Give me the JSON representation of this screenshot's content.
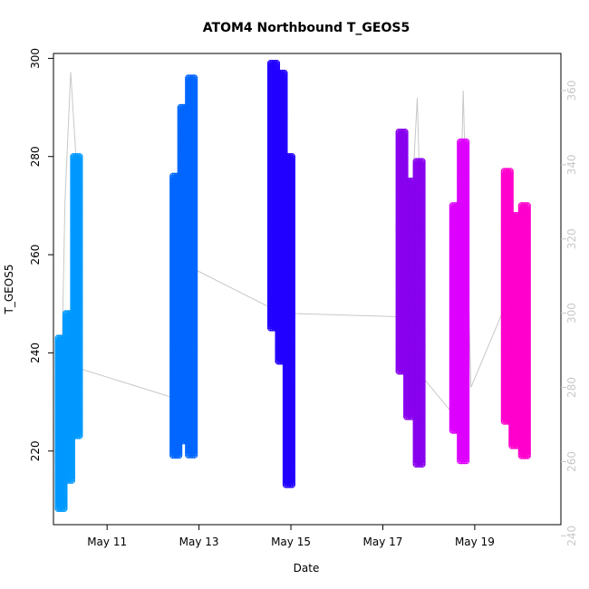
{
  "chart_data": {
    "type": "scatter",
    "title": "ATOM4 Northbound T_GEOS5",
    "xlabel": "Date",
    "ylabel": "T_GEOS5",
    "xlim": [
      "2016-05-09T20:00",
      "2016-05-20T21:00"
    ],
    "ylim": [
      205,
      301
    ],
    "ylim_right": [
      243,
      370
    ],
    "x_ticks": [
      {
        "date": "2016-05-11",
        "label": "May 11"
      },
      {
        "date": "2016-05-13",
        "label": "May 13"
      },
      {
        "date": "2016-05-15",
        "label": "May 15"
      },
      {
        "date": "2016-05-17",
        "label": "May 17"
      },
      {
        "date": "2016-05-19",
        "label": "May 19"
      }
    ],
    "y_ticks": [
      220,
      240,
      260,
      280,
      300
    ],
    "y_ticks_right": [
      240,
      260,
      280,
      300,
      320,
      340,
      360
    ],
    "grid": false,
    "marker": "open-circle",
    "series": [
      {
        "color": "#0099ff",
        "segments": [
          {
            "x": "2016-05-10T00:00",
            "ymin": 208,
            "ymax": 243
          },
          {
            "x": "2016-05-10T04:00",
            "ymin": 214,
            "ymax": 248
          },
          {
            "x": "2016-05-10T08:00",
            "ymin": 223,
            "ymax": 280
          }
        ]
      },
      {
        "color": "#0066ff",
        "segments": [
          {
            "x": "2016-05-12T12:00",
            "ymin": 219,
            "ymax": 276
          },
          {
            "x": "2016-05-12T16:00",
            "ymin": 222,
            "ymax": 290
          },
          {
            "x": "2016-05-12T20:00",
            "ymin": 219,
            "ymax": 296
          }
        ]
      },
      {
        "color": "#2200ff",
        "segments": [
          {
            "x": "2016-05-14T15:00",
            "ymin": 245,
            "ymax": 299
          },
          {
            "x": "2016-05-14T19:00",
            "ymin": 238,
            "ymax": 297
          },
          {
            "x": "2016-05-14T23:00",
            "ymin": 213,
            "ymax": 280
          }
        ]
      },
      {
        "color": "#8800ee",
        "segments": [
          {
            "x": "2016-05-17T10:00",
            "ymin": 236,
            "ymax": 285
          },
          {
            "x": "2016-05-17T14:00",
            "ymin": 227,
            "ymax": 275
          },
          {
            "x": "2016-05-17T19:00",
            "ymin": 217,
            "ymax": 279
          }
        ]
      },
      {
        "color": "#dd00ff",
        "segments": [
          {
            "x": "2016-05-18T14:00",
            "ymin": 224,
            "ymax": 270
          },
          {
            "x": "2016-05-18T18:00",
            "ymin": 218,
            "ymax": 283
          }
        ]
      },
      {
        "color": "#ff00cc",
        "segments": [
          {
            "x": "2016-05-19T17:00",
            "ymin": 226,
            "ymax": 277
          },
          {
            "x": "2016-05-19T21:00",
            "ymin": 221,
            "ymax": 268
          },
          {
            "x": "2016-05-20T02:00",
            "ymin": 219,
            "ymax": 270
          }
        ]
      }
    ],
    "right_axis_line": {
      "color": "#c8c8c8",
      "points": [
        {
          "x": "2016-05-09T23:00",
          "y": 250
        },
        {
          "x": "2016-05-10T02:00",
          "y": 330
        },
        {
          "x": "2016-05-10T05:00",
          "y": 365
        },
        {
          "x": "2016-05-10T08:00",
          "y": 340
        },
        {
          "x": "2016-05-10T10:00",
          "y": 285
        },
        {
          "x": "2016-05-12T12:00",
          "y": 277
        },
        {
          "x": "2016-05-12T17:00",
          "y": 330
        },
        {
          "x": "2016-05-12T21:00",
          "y": 312
        },
        {
          "x": "2016-05-14T19:00",
          "y": 300
        },
        {
          "x": "2016-05-17T12:00",
          "y": 299
        },
        {
          "x": "2016-05-17T18:00",
          "y": 358
        },
        {
          "x": "2016-05-17T22:00",
          "y": 282
        },
        {
          "x": "2016-05-18T14:00",
          "y": 272
        },
        {
          "x": "2016-05-18T18:00",
          "y": 360
        },
        {
          "x": "2016-05-18T22:00",
          "y": 280
        },
        {
          "x": "2016-05-19T20:00",
          "y": 307
        },
        {
          "x": "2016-05-20T01:00",
          "y": 330
        }
      ]
    }
  }
}
